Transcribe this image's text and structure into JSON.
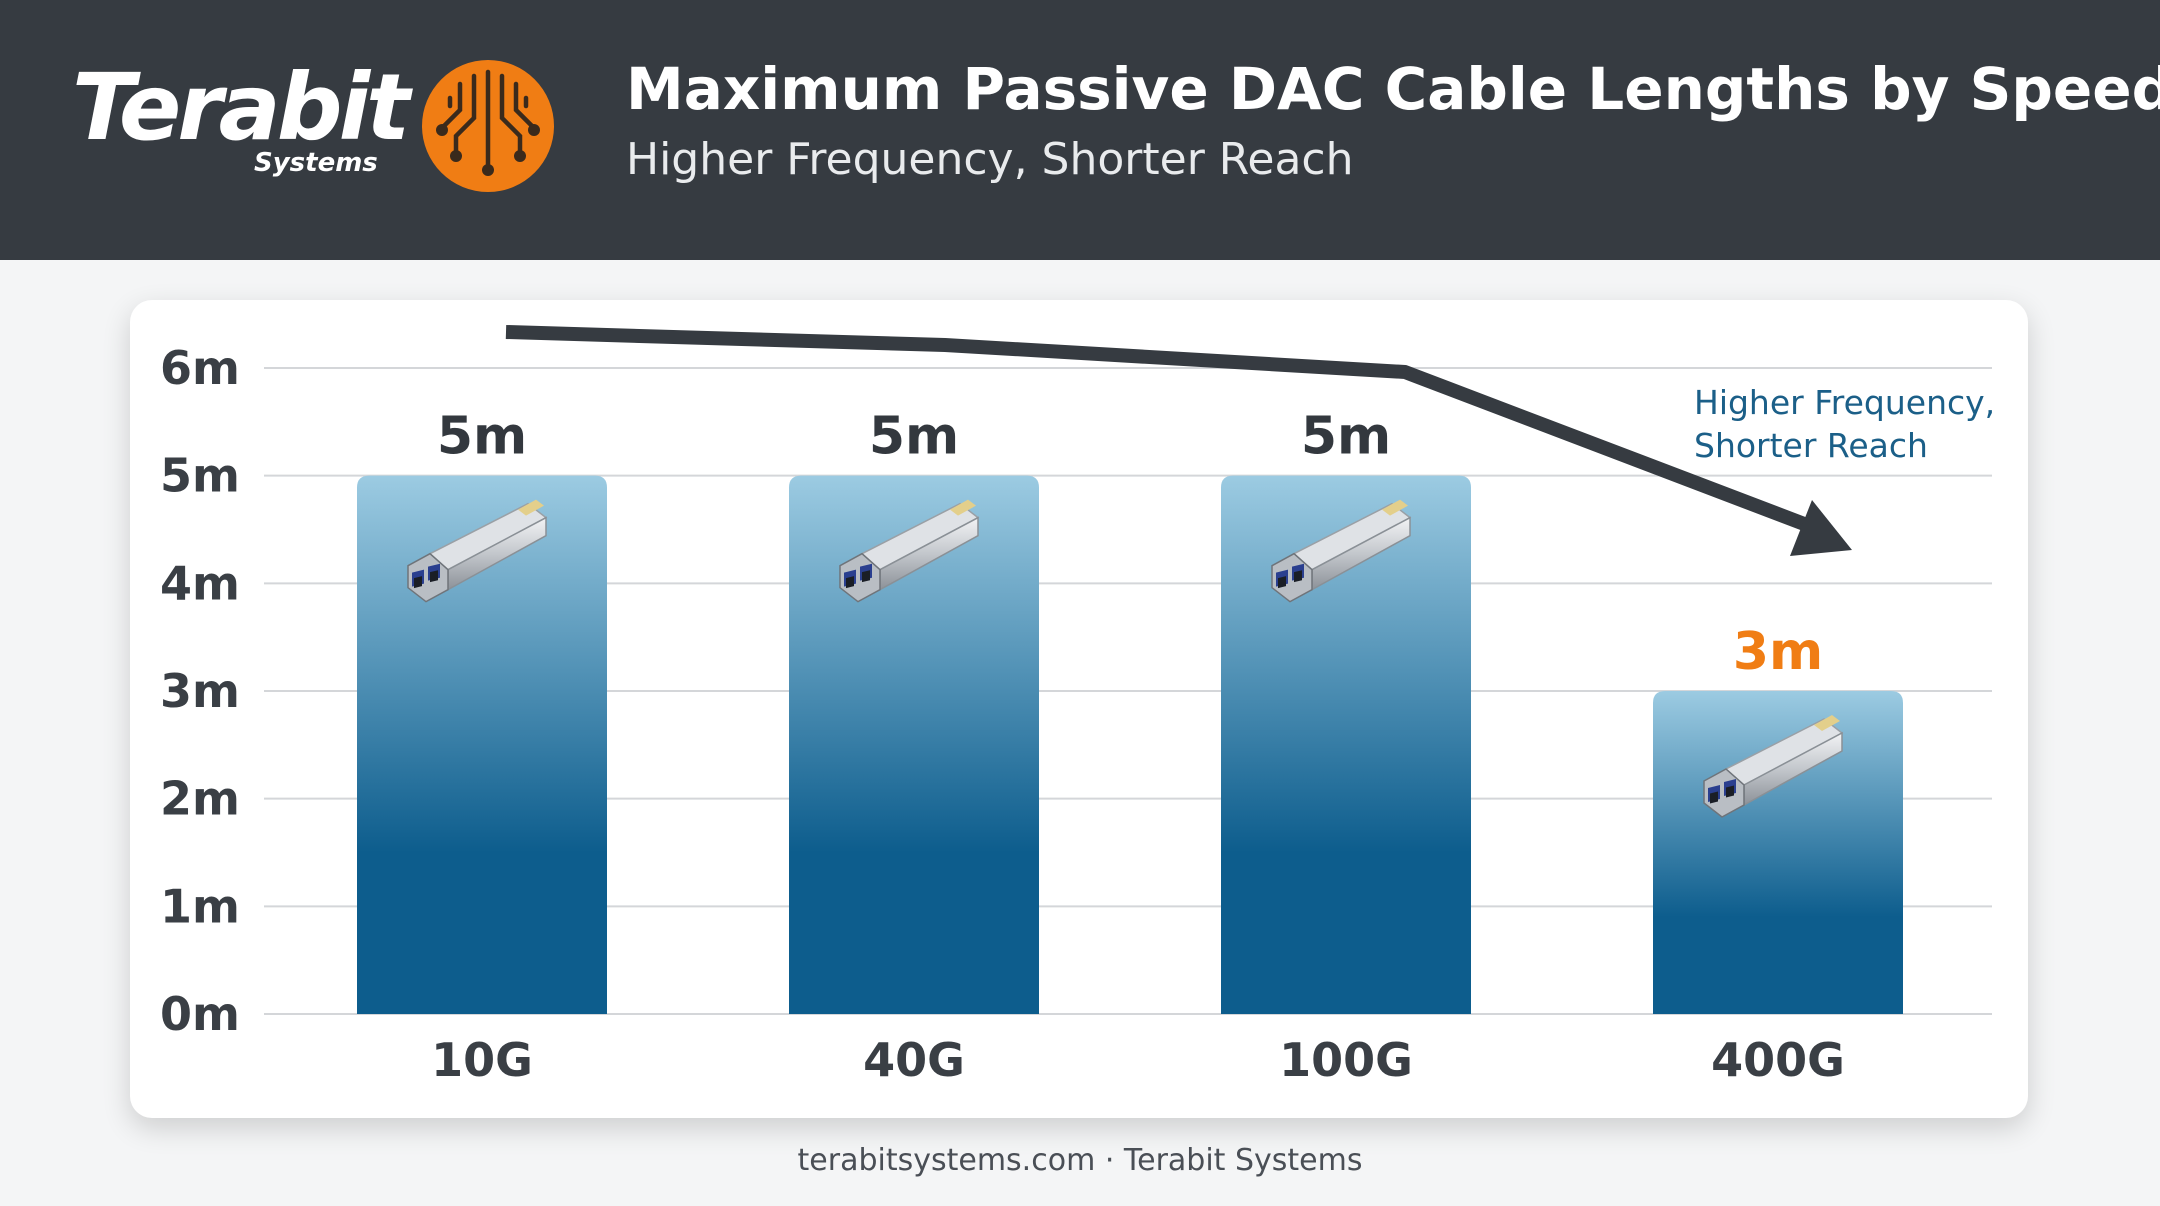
{
  "header": {
    "logo_text": "Terabit",
    "logo_subtext": "Systems",
    "logo_icon": "circuit-icon",
    "title": "Maximum Passive DAC Cable Lengths by Speed",
    "subtitle": "Higher Frequency, Shorter Reach"
  },
  "colors": {
    "header_bg": "#363b41",
    "accent": "#f07d14",
    "bar_top": "#9ccbe2",
    "bar_bottom": "#0d5d8d",
    "annotation": "#1b5f88",
    "trend_arrow": "#363b41"
  },
  "chart_data": {
    "type": "bar",
    "categories": [
      "10G",
      "40G",
      "100G",
      "400G"
    ],
    "values": [
      5,
      5,
      5,
      3
    ],
    "data_labels": [
      "5m",
      "5m",
      "5m",
      "3m"
    ],
    "highlight_index": 3,
    "y_ticks": [
      "0m",
      "1m",
      "2m",
      "3m",
      "4m",
      "5m",
      "6m"
    ],
    "ylim": [
      0,
      6
    ],
    "unit": "m",
    "grid": true,
    "bar_icon": "sfp-transceiver-icon",
    "annotation": [
      "Higher Frequency,",
      "Shorter Reach"
    ],
    "trend_arrow": "downward"
  },
  "footer": "terabitsystems.com · Terabit Systems"
}
